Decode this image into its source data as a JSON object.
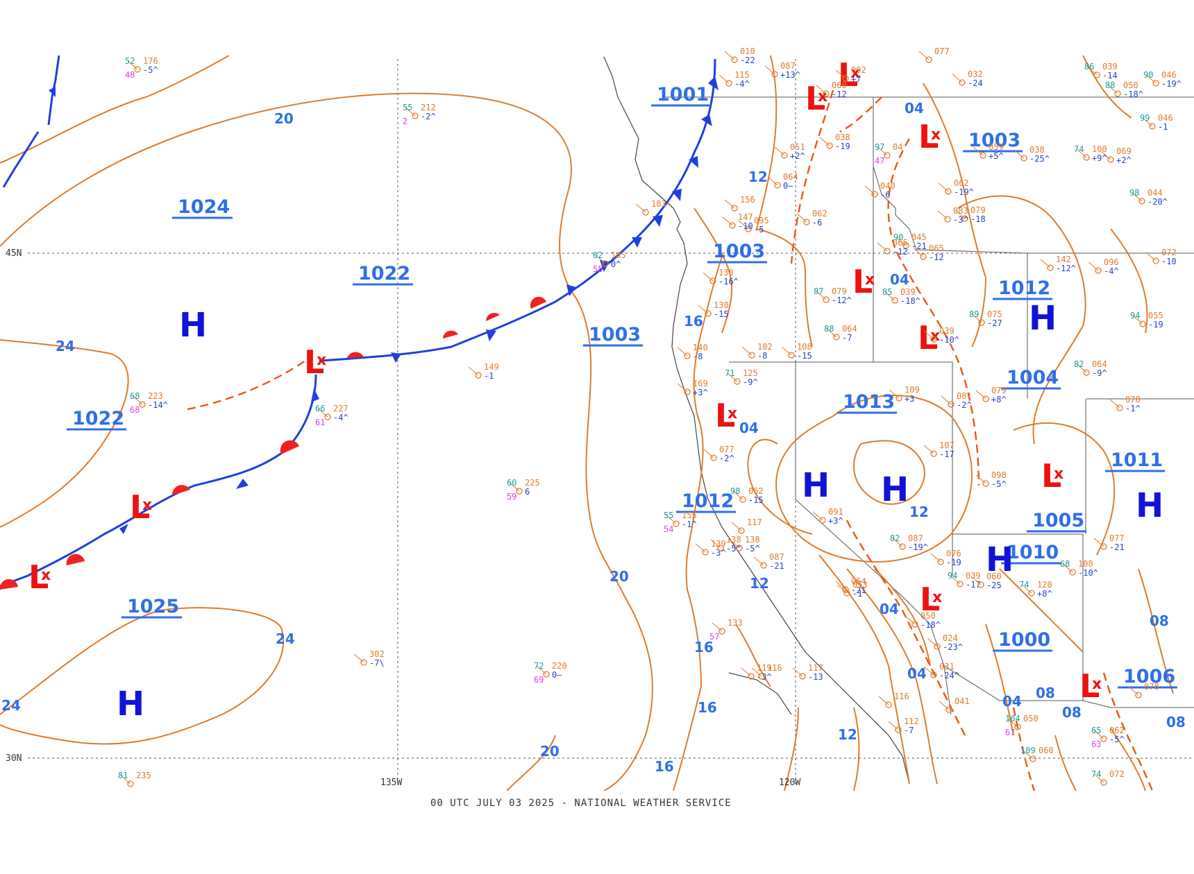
{
  "colors": {
    "isobar": "#e07b2a",
    "isobar_label": "#2f6fe8",
    "high_symbol": "#1212d8",
    "low_symbol": "#ee1111",
    "cold_front": "#1f3fe0",
    "warm_front": "#ee2222",
    "trough": "#ee5511",
    "grid": "#555555",
    "border": "#444444",
    "temperature": "#18a0a0",
    "dewpoint": "#e040e0",
    "pressure": "#e07b2a",
    "tendency": "#2244cc"
  },
  "map": {
    "latitude_labels": [
      "45N",
      "30N"
    ],
    "longitude_labels": [
      "135W",
      "120W"
    ],
    "isobar_labels": [
      "20",
      "24",
      "24",
      "24",
      "24",
      "20",
      "16",
      "16",
      "16",
      "16",
      "16",
      "12",
      "12",
      "12",
      "12",
      "04",
      "04",
      "04",
      "04",
      "04",
      "04",
      "08",
      "08",
      "08",
      "08",
      "20",
      "20"
    ],
    "pressure_centers": [
      {
        "type": "label",
        "text": "1024"
      },
      {
        "type": "label",
        "text": "1022"
      },
      {
        "type": "label",
        "text": "1022"
      },
      {
        "type": "label",
        "text": "1025"
      },
      {
        "type": "label",
        "text": "1001"
      },
      {
        "type": "label",
        "text": "1003"
      },
      {
        "type": "label",
        "text": "1003"
      },
      {
        "type": "label",
        "text": "1003"
      },
      {
        "type": "label",
        "text": "1012"
      },
      {
        "type": "label",
        "text": "1004"
      },
      {
        "type": "label",
        "text": "1013"
      },
      {
        "type": "label",
        "text": "1012"
      },
      {
        "type": "label",
        "text": "1011"
      },
      {
        "type": "label",
        "text": "1005"
      },
      {
        "type": "label",
        "text": "1010"
      },
      {
        "type": "label",
        "text": "1000"
      },
      {
        "type": "label",
        "text": "1006"
      }
    ],
    "high_letter": "H",
    "low_letter": "L",
    "low_mark": "x"
  },
  "stations": [
    {
      "t": "55",
      "p": "212",
      "tend": "-2^",
      "d": "2"
    },
    {
      "t": "52",
      "p": "176",
      "tend": "-5^",
      "d": "48"
    },
    {
      "t": "68",
      "p": "223",
      "tend": "-14^",
      "d": "68"
    },
    {
      "t": "66",
      "p": "227",
      "tend": "-4^",
      "d": "61"
    },
    {
      "t": "60",
      "p": "225",
      "tend": "6",
      "d": "59"
    },
    {
      "t": "",
      "p": "302",
      "tend": "-7\\",
      "d": ""
    },
    {
      "t": "72",
      "p": "220",
      "tend": "0—",
      "d": "69"
    },
    {
      "t": "62",
      "p": "185",
      "tend": "0^",
      "d": "55"
    },
    {
      "t": "81",
      "p": "235",
      "tend": "",
      "d": ""
    },
    {
      "t": "",
      "p": "183",
      "tend": "",
      "d": ""
    },
    {
      "t": "",
      "p": "119",
      "tend": "-3^",
      "d": ""
    },
    {
      "t": "",
      "p": "116",
      "tend": "",
      "d": ""
    },
    {
      "t": "",
      "p": "139",
      "tend": "-3^",
      "d": ""
    },
    {
      "t": "55",
      "p": "155",
      "tend": "-1^",
      "d": "54"
    },
    {
      "t": "",
      "p": "130",
      "tend": "-15",
      "d": ""
    },
    {
      "t": "",
      "p": "138",
      "tend": "-16^",
      "d": ""
    },
    {
      "t": "",
      "p": "140",
      "tend": "-8",
      "d": ""
    },
    {
      "t": "71",
      "p": "125",
      "tend": "-9^",
      "d": ""
    },
    {
      "t": "",
      "p": "169",
      "tend": "+3^",
      "d": ""
    },
    {
      "t": "",
      "p": "077",
      "tend": "-2^",
      "d": ""
    },
    {
      "t": "",
      "p": "133",
      "tend": "",
      "d": "57"
    },
    {
      "t": "98",
      "p": "062",
      "tend": "-15",
      "d": ""
    },
    {
      "t": "88",
      "p": "064",
      "tend": "-7",
      "d": ""
    },
    {
      "t": "87",
      "p": "079",
      "tend": "-12^",
      "d": ""
    },
    {
      "t": "85",
      "p": "039",
      "tend": "-18^",
      "d": ""
    },
    {
      "t": "",
      "p": "039",
      "tend": "-10^",
      "d": ""
    },
    {
      "t": "",
      "p": "109",
      "tend": "+3",
      "d": ""
    },
    {
      "t": "",
      "p": "107",
      "tend": "-17",
      "d": ""
    },
    {
      "t": "",
      "p": "091",
      "tend": "+3^",
      "d": ""
    },
    {
      "t": "82",
      "p": "087",
      "tend": "-19^",
      "d": ""
    },
    {
      "t": "",
      "p": "076",
      "tend": "-19",
      "d": ""
    },
    {
      "t": "",
      "p": "054",
      "tend": "-21",
      "d": ""
    },
    {
      "t": "",
      "p": "053",
      "tend": "-1",
      "d": ""
    },
    {
      "t": "",
      "p": "050",
      "tend": "-18^",
      "d": ""
    },
    {
      "t": "",
      "p": "024",
      "tend": "-23^",
      "d": ""
    },
    {
      "t": "",
      "p": "031",
      "tend": "-24^",
      "d": ""
    },
    {
      "t": "94",
      "p": "039",
      "tend": "-17",
      "d": ""
    },
    {
      "t": "",
      "p": "098",
      "tend": "-5^",
      "d": ""
    },
    {
      "t": "",
      "p": "079",
      "tend": "+8^",
      "d": ""
    },
    {
      "t": "",
      "p": "081",
      "tend": "-2^",
      "d": ""
    },
    {
      "t": "74",
      "p": "120",
      "tend": "+8^",
      "d": ""
    },
    {
      "t": "68",
      "p": "108",
      "tend": "-10^",
      "d": ""
    },
    {
      "t": "",
      "p": "077",
      "tend": "-21",
      "d": ""
    },
    {
      "t": "",
      "p": "041",
      "tend": "",
      "d": ""
    },
    {
      "t": "104",
      "p": "050",
      "tend": "",
      "d": "67"
    },
    {
      "t": "109",
      "p": "060",
      "tend": "",
      "d": ""
    },
    {
      "t": "65",
      "p": "062",
      "tend": "-5^",
      "d": "63"
    },
    {
      "t": "74",
      "p": "072",
      "tend": "",
      "d": ""
    },
    {
      "t": "",
      "p": "065",
      "tend": "-12",
      "d": ""
    },
    {
      "t": "90",
      "p": "045",
      "tend": "-21",
      "d": ""
    },
    {
      "t": "",
      "p": "142",
      "tend": "-12^",
      "d": ""
    },
    {
      "t": "",
      "p": "096",
      "tend": "-4^",
      "d": ""
    },
    {
      "t": "89",
      "p": "075",
      "tend": "-27",
      "d": ""
    },
    {
      "t": "82",
      "p": "064",
      "tend": "-9^",
      "d": ""
    },
    {
      "t": "",
      "p": "078",
      "tend": "-1^",
      "d": ""
    },
    {
      "t": "",
      "p": "072",
      "tend": "-10",
      "d": ""
    },
    {
      "t": "94",
      "p": "055",
      "tend": "-19",
      "d": ""
    },
    {
      "t": "",
      "p": "078",
      "tend": "",
      "d": ""
    },
    {
      "t": "",
      "p": "060",
      "tend": "-25",
      "d": ""
    },
    {
      "t": "",
      "p": "117",
      "tend": "",
      "d": ""
    },
    {
      "t": "",
      "p": "138",
      "tend": "-5^",
      "d": ""
    },
    {
      "t": "",
      "p": "087",
      "tend": "-21",
      "d": ""
    },
    {
      "t": "",
      "p": "095",
      "tend": "-5",
      "d": ""
    },
    {
      "t": "",
      "p": "102",
      "tend": "-8",
      "d": ""
    },
    {
      "t": "",
      "p": "108",
      "tend": "-15",
      "d": ""
    },
    {
      "t": "",
      "p": "147",
      "tend": "-10",
      "d": ""
    },
    {
      "t": "",
      "p": "156",
      "tend": "",
      "d": ""
    },
    {
      "t": "",
      "p": "062",
      "tend": "-6",
      "d": ""
    },
    {
      "t": "",
      "p": "065",
      "tend": "-12",
      "d": ""
    },
    {
      "t": "",
      "p": "064",
      "tend": "0—",
      "d": ""
    },
    {
      "t": "",
      "p": "051",
      "tend": "+2^",
      "d": ""
    },
    {
      "t": "",
      "p": "040",
      "tend": "-6",
      "d": ""
    },
    {
      "t": "",
      "p": "062",
      "tend": "-19^",
      "d": ""
    },
    {
      "t": "",
      "p": "079",
      "tend": "-18",
      "d": ""
    },
    {
      "t": "",
      "p": "083",
      "tend": "-3^",
      "d": ""
    },
    {
      "t": "",
      "p": "059",
      "tend": "+5^",
      "d": ""
    },
    {
      "t": "",
      "p": "038",
      "tend": "-25^",
      "d": ""
    },
    {
      "t": "74",
      "p": "100",
      "tend": "+9^",
      "d": ""
    },
    {
      "t": "",
      "p": "069",
      "tend": "+2^",
      "d": ""
    },
    {
      "t": "98",
      "p": "044",
      "tend": "-20^",
      "d": ""
    },
    {
      "t": "99",
      "p": "046",
      "tend": "-1",
      "d": ""
    },
    {
      "t": "97",
      "p": "04",
      "tend": "",
      "d": "47"
    },
    {
      "t": "",
      "p": "038",
      "tend": "-19",
      "d": ""
    },
    {
      "t": "",
      "p": "060",
      "tend": "-12",
      "d": ""
    },
    {
      "t": "",
      "p": "032",
      "tend": "-24",
      "d": ""
    },
    {
      "t": "86",
      "p": "039",
      "tend": "-14",
      "d": ""
    },
    {
      "t": "88",
      "p": "050",
      "tend": "-18^",
      "d": ""
    },
    {
      "t": "90",
      "p": "046",
      "tend": "-19^",
      "d": ""
    },
    {
      "t": "",
      "p": "077",
      "tend": "",
      "d": ""
    },
    {
      "t": "",
      "p": "087",
      "tend": "+13^",
      "d": ""
    },
    {
      "t": "",
      "p": "092",
      "tend": "+7",
      "d": ""
    },
    {
      "t": "",
      "p": "010",
      "tend": "-22",
      "d": ""
    },
    {
      "t": "",
      "p": "115",
      "tend": "-4^",
      "d": ""
    },
    {
      "t": "",
      "p": "138",
      "tend": "-5^",
      "d": ""
    },
    {
      "t": "",
      "p": "117",
      "tend": "-13",
      "d": ""
    },
    {
      "t": "",
      "p": "116",
      "tend": "",
      "d": ""
    },
    {
      "t": "",
      "p": "112",
      "tend": "-7",
      "d": ""
    },
    {
      "t": "",
      "p": "149",
      "tend": "-1",
      "d": ""
    }
  ],
  "footer": "00 UTC JULY 03 2025 - NATIONAL WEATHER SERVICE"
}
